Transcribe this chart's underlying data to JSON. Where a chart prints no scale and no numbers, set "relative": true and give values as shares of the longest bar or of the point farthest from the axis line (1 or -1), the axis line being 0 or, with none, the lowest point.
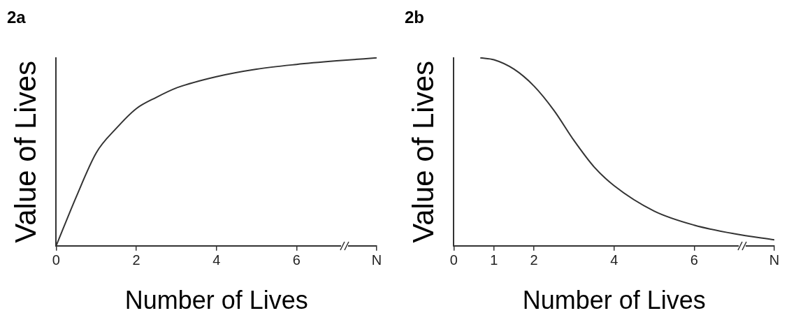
{
  "chart_data": [
    {
      "type": "line",
      "title": "2a",
      "xlabel": "Number of Lives",
      "ylabel": "Value of Lives",
      "relative": true,
      "marker": "none",
      "grid": false,
      "legend": false,
      "xlim": [
        0,
        8
      ],
      "xticks": [
        0,
        2,
        4,
        6,
        {
          "value": 8,
          "label": "N"
        }
      ],
      "series": [
        {
          "color": "#333333",
          "x": [
            0,
            0.5,
            1,
            1.5,
            2,
            2.5,
            3,
            4,
            5,
            6,
            7,
            8
          ],
          "values": [
            0,
            0.26,
            0.495,
            0.625,
            0.73,
            0.79,
            0.84,
            0.9,
            0.94,
            0.965,
            0.984,
            1
          ]
        }
      ]
    },
    {
      "type": "line",
      "title": "2b",
      "xlabel": "Number of Lives",
      "ylabel": "Value of Lives",
      "relative": true,
      "marker": "none",
      "grid": false,
      "legend": false,
      "xlim": [
        0,
        8
      ],
      "xticks": [
        0,
        1,
        2,
        4,
        6,
        {
          "value": 8,
          "label": "N"
        }
      ],
      "series": [
        {
          "color": "#333333",
          "x": [
            0.66,
            1,
            1.5,
            2,
            2.5,
            3,
            3.5,
            4,
            5,
            6,
            7,
            8
          ],
          "values": [
            1,
            0.99,
            0.94,
            0.85,
            0.72,
            0.56,
            0.42,
            0.32,
            0.185,
            0.11,
            0.064,
            0.032
          ]
        }
      ]
    }
  ]
}
